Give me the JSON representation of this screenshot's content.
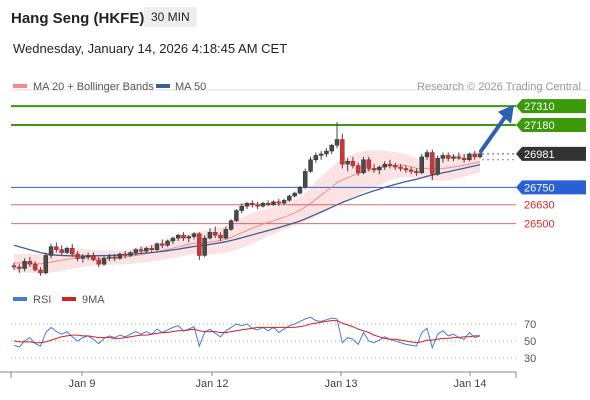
{
  "header": {
    "title": "Hang Seng (HKFE)",
    "timeframe": "30 MIN",
    "datetime": "Wednesday, January 14, 2026 4:18:45 AM CET"
  },
  "legend": [
    {
      "label": "MA 20 + Bollinger Bands",
      "color": "#f28b8b"
    },
    {
      "label": "MA 50",
      "color": "#3a5f9a"
    }
  ],
  "credit": "Research © 2026 Trading Central",
  "chart_data": [
    {
      "type": "candlestick",
      "title": "",
      "x": [
        "Jan 9",
        "Jan 12",
        "Jan 13",
        "Jan 14"
      ],
      "ylim": [
        26090,
        27380
      ],
      "price_levels": [
        {
          "value": 27310,
          "label": "27310",
          "kind": "resistance",
          "color": "#3a9a0a"
        },
        {
          "value": 27180,
          "label": "27180",
          "kind": "resistance",
          "color": "#3a9a0a"
        },
        {
          "value": 26981,
          "label": "26981",
          "kind": "last",
          "color": "#333333"
        },
        {
          "value": 26750,
          "label": "26750",
          "kind": "pivot",
          "color": "#2a5fd6"
        },
        {
          "value": 26630,
          "label": "26630",
          "kind": "support",
          "color": "#d52b2b"
        },
        {
          "value": 26500,
          "label": "26500",
          "kind": "support",
          "color": "#d52b2b"
        }
      ],
      "candles": [
        [
          26210,
          26230,
          26180,
          26200
        ],
        [
          26200,
          26220,
          26160,
          26190
        ],
        [
          26190,
          26260,
          26170,
          26240
        ],
        [
          26240,
          26270,
          26200,
          26220
        ],
        [
          26220,
          26240,
          26170,
          26180
        ],
        [
          26180,
          26200,
          26140,
          26160
        ],
        [
          26160,
          26300,
          26150,
          26280
        ],
        [
          26280,
          26360,
          26260,
          26340
        ],
        [
          26340,
          26370,
          26300,
          26320
        ],
        [
          26320,
          26350,
          26280,
          26300
        ],
        [
          26300,
          26340,
          26290,
          26330
        ],
        [
          26330,
          26360,
          26270,
          26290
        ],
        [
          26290,
          26310,
          26240,
          26260
        ],
        [
          26260,
          26290,
          26230,
          26270
        ],
        [
          26270,
          26300,
          26250,
          26280
        ],
        [
          26280,
          26300,
          26240,
          26250
        ],
        [
          26250,
          26270,
          26200,
          26220
        ],
        [
          26220,
          26280,
          26210,
          26260
        ],
        [
          26260,
          26290,
          26240,
          26270
        ],
        [
          26270,
          26290,
          26240,
          26260
        ],
        [
          26260,
          26300,
          26250,
          26290
        ],
        [
          26290,
          26310,
          26260,
          26280
        ],
        [
          26280,
          26310,
          26270,
          26300
        ],
        [
          26300,
          26330,
          26280,
          26320
        ],
        [
          26320,
          26340,
          26290,
          26310
        ],
        [
          26310,
          26340,
          26300,
          26330
        ],
        [
          26330,
          26350,
          26300,
          26320
        ],
        [
          26320,
          26370,
          26310,
          26360
        ],
        [
          26360,
          26390,
          26330,
          26350
        ],
        [
          26350,
          26390,
          26340,
          26380
        ],
        [
          26380,
          26410,
          26360,
          26400
        ],
        [
          26400,
          26430,
          26380,
          26420
        ],
        [
          26420,
          26440,
          26380,
          26400
        ],
        [
          26400,
          26420,
          26370,
          26410
        ],
        [
          26410,
          26440,
          26390,
          26430
        ],
        [
          26430,
          26440,
          26250,
          26280
        ],
        [
          26280,
          26420,
          26270,
          26400
        ],
        [
          26400,
          26470,
          26390,
          26440
        ],
        [
          26440,
          26480,
          26400,
          26420
        ],
        [
          26420,
          26440,
          26380,
          26400
        ],
        [
          26400,
          26480,
          26390,
          26460
        ],
        [
          26460,
          26530,
          26450,
          26520
        ],
        [
          26520,
          26600,
          26510,
          26590
        ],
        [
          26590,
          26640,
          26570,
          26620
        ],
        [
          26620,
          26650,
          26600,
          26640
        ],
        [
          26640,
          26660,
          26610,
          26630
        ],
        [
          26630,
          26650,
          26600,
          26620
        ],
        [
          26620,
          26650,
          26610,
          26640
        ],
        [
          26640,
          26660,
          26620,
          26630
        ],
        [
          26630,
          26660,
          26620,
          26650
        ],
        [
          26650,
          26670,
          26620,
          26640
        ],
        [
          26640,
          26670,
          26630,
          26660
        ],
        [
          26660,
          26700,
          26650,
          26690
        ],
        [
          26690,
          26720,
          26680,
          26710
        ],
        [
          26710,
          26760,
          26700,
          26750
        ],
        [
          26750,
          26880,
          26740,
          26860
        ],
        [
          26860,
          26960,
          26850,
          26940
        ],
        [
          26940,
          26990,
          26920,
          26970
        ],
        [
          26970,
          27000,
          26940,
          26980
        ],
        [
          26980,
          27020,
          26960,
          27000
        ],
        [
          27000,
          27050,
          26980,
          27040
        ],
        [
          27040,
          27200,
          27020,
          27080
        ],
        [
          27080,
          27120,
          26880,
          26910
        ],
        [
          26910,
          26950,
          26860,
          26930
        ],
        [
          26930,
          26960,
          26880,
          26900
        ],
        [
          26900,
          26920,
          26830,
          26850
        ],
        [
          26850,
          26960,
          26840,
          26940
        ],
        [
          26940,
          26960,
          26860,
          26880
        ],
        [
          26880,
          26910,
          26850,
          26870
        ],
        [
          26870,
          26900,
          26840,
          26890
        ],
        [
          26890,
          26930,
          26870,
          26910
        ],
        [
          26910,
          26940,
          26880,
          26900
        ],
        [
          26900,
          26920,
          26870,
          26890
        ],
        [
          26890,
          26910,
          26860,
          26880
        ],
        [
          26880,
          26900,
          26850,
          26870
        ],
        [
          26870,
          26890,
          26840,
          26860
        ],
        [
          26860,
          26880,
          26830,
          26850
        ],
        [
          26850,
          26980,
          26840,
          26960
        ],
        [
          26960,
          27010,
          26940,
          26990
        ],
        [
          26990,
          27010,
          26800,
          26840
        ],
        [
          26840,
          26970,
          26830,
          26950
        ],
        [
          26950,
          26990,
          26920,
          26970
        ],
        [
          26970,
          26990,
          26930,
          26950
        ],
        [
          26950,
          26980,
          26930,
          26960
        ],
        [
          26960,
          26990,
          26940,
          26950
        ],
        [
          26950,
          26980,
          26920,
          26940
        ],
        [
          26940,
          26990,
          26930,
          26980
        ],
        [
          26980,
          27000,
          26940,
          26960
        ],
        [
          26960,
          26990,
          26950,
          26981
        ]
      ],
      "indicators": {
        "ma20": [
          26230,
          26228,
          26226,
          26226,
          26224,
          26222,
          26226,
          26234,
          26242,
          26248,
          26254,
          26258,
          26260,
          26262,
          26264,
          26264,
          26262,
          26262,
          26263,
          26264,
          26267,
          26270,
          26274,
          26280,
          26286,
          26292,
          26298,
          26306,
          26314,
          26322,
          26330,
          26340,
          26348,
          26356,
          26364,
          26364,
          26366,
          26372,
          26378,
          26384,
          26392,
          26404,
          26420,
          26436,
          26452,
          26468,
          26482,
          26496,
          26508,
          26520,
          26532,
          26544,
          26558,
          26574,
          26592,
          26614,
          26640,
          26668,
          26696,
          26724,
          26752,
          26782,
          26800,
          26816,
          26832,
          26844,
          26858,
          26868,
          26876,
          26884,
          26892,
          26898,
          26902,
          26904,
          26900,
          26892,
          26882,
          26880,
          26882,
          26878,
          26878,
          26880,
          26884,
          26890,
          26896,
          26902,
          26910,
          26918,
          26926
        ],
        "ma50": [
          26350,
          26340,
          26330,
          26320,
          26310,
          26300,
          26292,
          26286,
          26282,
          26280,
          26278,
          26277,
          26276,
          26276,
          26276,
          26277,
          26278,
          26279,
          26280,
          26281,
          26283,
          26285,
          26288,
          26291,
          26294,
          26297,
          26300,
          26304,
          26308,
          26313,
          26318,
          26324,
          26330,
          26336,
          26342,
          26346,
          26350,
          26356,
          26362,
          26368,
          26375,
          26383,
          26392,
          26402,
          26412,
          26422,
          26432,
          26442,
          26452,
          26462,
          26472,
          26483,
          26494,
          26506,
          26518,
          26532,
          26548,
          26564,
          26580,
          26596,
          26612,
          26630,
          26646,
          26660,
          26674,
          26688,
          26702,
          26714,
          26726,
          26738,
          26750,
          26760,
          26770,
          26780,
          26790,
          26798,
          26806,
          26816,
          26826,
          26834,
          26842,
          26850,
          26858,
          26866,
          26874,
          26882,
          26890,
          26898,
          26906
        ],
        "bb_halfwidth": [
          60,
          62,
          64,
          64,
          66,
          68,
          70,
          72,
          74,
          74,
          72,
          70,
          66,
          62,
          58,
          54,
          52,
          50,
          48,
          48,
          48,
          50,
          52,
          54,
          56,
          58,
          60,
          62,
          64,
          66,
          68,
          70,
          72,
          74,
          76,
          80,
          84,
          86,
          88,
          90,
          92,
          96,
          100,
          104,
          106,
          106,
          104,
          100,
          96,
          92,
          88,
          86,
          86,
          88,
          92,
          100,
          110,
          120,
          128,
          134,
          138,
          142,
          146,
          148,
          148,
          146,
          142,
          136,
          128,
          120,
          110,
          100,
          92,
          84,
          78,
          72,
          68,
          70,
          74,
          80,
          84,
          86,
          86,
          84,
          82,
          80,
          78,
          76,
          74
        ]
      }
    },
    {
      "type": "line",
      "series": [
        {
          "name": "RSI",
          "color": "#4a78d8",
          "values": [
            45,
            43,
            50,
            54,
            47,
            44,
            60,
            66,
            61,
            58,
            61,
            55,
            50,
            54,
            56,
            52,
            47,
            53,
            56,
            54,
            57,
            55,
            58,
            61,
            58,
            61,
            58,
            64,
            60,
            63,
            66,
            68,
            62,
            64,
            67,
            44,
            60,
            64,
            59,
            55,
            62,
            66,
            70,
            68,
            70,
            65,
            63,
            66,
            62,
            66,
            60,
            64,
            68,
            70,
            73,
            76,
            78,
            74,
            73,
            75,
            77,
            76,
            48,
            54,
            52,
            46,
            60,
            50,
            48,
            51,
            55,
            52,
            50,
            48,
            46,
            45,
            44,
            60,
            65,
            42,
            58,
            62,
            56,
            58,
            54,
            52,
            60,
            54,
            56
          ]
        },
        {
          "name": "9MA",
          "color": "#d62020",
          "values": [
            50,
            49,
            49,
            49,
            48,
            48,
            49,
            51,
            53,
            55,
            56,
            57,
            57,
            56,
            56,
            55,
            54,
            54,
            54,
            53,
            53,
            54,
            55,
            56,
            57,
            57,
            58,
            59,
            60,
            60,
            61,
            62,
            62,
            63,
            64,
            62,
            61,
            61,
            61,
            60,
            60,
            61,
            62,
            63,
            64,
            65,
            66,
            66,
            66,
            66,
            66,
            66,
            66,
            66,
            67,
            68,
            70,
            71,
            72,
            73,
            74,
            74,
            71,
            69,
            67,
            64,
            62,
            60,
            57,
            55,
            53,
            52,
            52,
            51,
            50,
            49,
            48,
            49,
            51,
            51,
            52,
            53,
            53,
            54,
            54,
            55,
            55,
            56,
            56
          ]
        }
      ],
      "yticks": [
        70,
        50,
        30
      ]
    }
  ]
}
